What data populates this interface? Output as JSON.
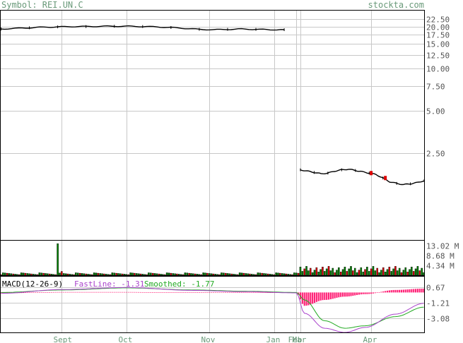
{
  "header": {
    "symbol_text": "Symbol: REI.UN.C",
    "site_text": "stockta.com"
  },
  "colors": {
    "frame": "#000000",
    "grid": "#c8c8c8",
    "price_line": "#000000",
    "volume_up": "#008000",
    "volume_down": "#dd0000",
    "macd_fast": "#aa44cc",
    "macd_smoothed": "#22aa22",
    "macd_hist": "#ff2277",
    "header_text": "#6a9a7a"
  },
  "chart_data": [
    {
      "type": "line",
      "name": "price",
      "scale": "log",
      "yticks": [
        "22.50",
        "20.00",
        "17.50",
        "15.00",
        "12.50",
        "10.00",
        "7.50",
        "5.00",
        "2.50"
      ],
      "ytick_values": [
        22.5,
        20,
        17.5,
        15,
        12.5,
        10,
        7.5,
        5,
        2.5
      ],
      "ylim": [
        0.6,
        26
      ],
      "x_labels": [
        "Sept",
        "Oct",
        "Nov",
        "Jan",
        "Feb",
        "Mar",
        "Apr"
      ],
      "x_label_index": [
        30,
        62,
        103,
        135,
        146,
        148,
        183
      ],
      "n": 210,
      "series": [
        {
          "segment": "before",
          "start_index": 0,
          "values": [
            19.2,
            19.4,
            19.6,
            19.8,
            19.9,
            20.0,
            20.0,
            20.1,
            20.1,
            20.1,
            20.0,
            19.9,
            19.7,
            19.4,
            19.1,
            19.0,
            19.1,
            19.2,
            19.1,
            19.0,
            19.0
          ]
        },
        {
          "segment": "after",
          "start_index": 148,
          "values": [
            1.9,
            1.86,
            1.82,
            1.78,
            1.8,
            1.86,
            1.9,
            1.92,
            1.88,
            1.84,
            1.8,
            1.76,
            1.66,
            1.56,
            1.52,
            1.49,
            1.51,
            1.54,
            1.59
          ]
        }
      ]
    },
    {
      "type": "bar",
      "name": "volume",
      "yticks": [
        "13.02 M",
        "8.68 M",
        "4.34 M"
      ],
      "ytick_values": [
        13.02,
        8.68,
        4.34
      ],
      "ylim": [
        0,
        15.2
      ],
      "unit": "M",
      "n": 210,
      "spike": {
        "index": 28,
        "value": 13.9
      },
      "late_start_index": 148
    },
    {
      "type": "line",
      "name": "macd",
      "title": "MACD(12-26-9)",
      "fastline_label": "FastLine: -1.31",
      "smoothed_label": "Smoothed: -1.77",
      "yticks": [
        "0.67",
        "-1.21",
        "-3.08"
      ],
      "ytick_values": [
        0.67,
        -1.21,
        -3.08
      ],
      "ylim": [
        -4.8,
        1.9
      ],
      "n": 210,
      "fast_keypoints": [
        [
          0,
          -0.1
        ],
        [
          30,
          0.35
        ],
        [
          62,
          0.6
        ],
        [
          95,
          0.25
        ],
        [
          120,
          0.1
        ],
        [
          146,
          -0.05
        ],
        [
          150,
          -2.5
        ],
        [
          160,
          -4.3
        ],
        [
          170,
          -4.8
        ],
        [
          180,
          -4.2
        ],
        [
          195,
          -2.6
        ],
        [
          209,
          -1.31
        ]
      ],
      "smoothed_keypoints": [
        [
          0,
          0.0
        ],
        [
          30,
          0.3
        ],
        [
          62,
          0.55
        ],
        [
          95,
          0.3
        ],
        [
          120,
          0.15
        ],
        [
          146,
          0.0
        ],
        [
          150,
          -0.9
        ],
        [
          160,
          -3.4
        ],
        [
          170,
          -4.3
        ],
        [
          180,
          -4.0
        ],
        [
          195,
          -2.9
        ],
        [
          209,
          -1.77
        ]
      ]
    }
  ]
}
